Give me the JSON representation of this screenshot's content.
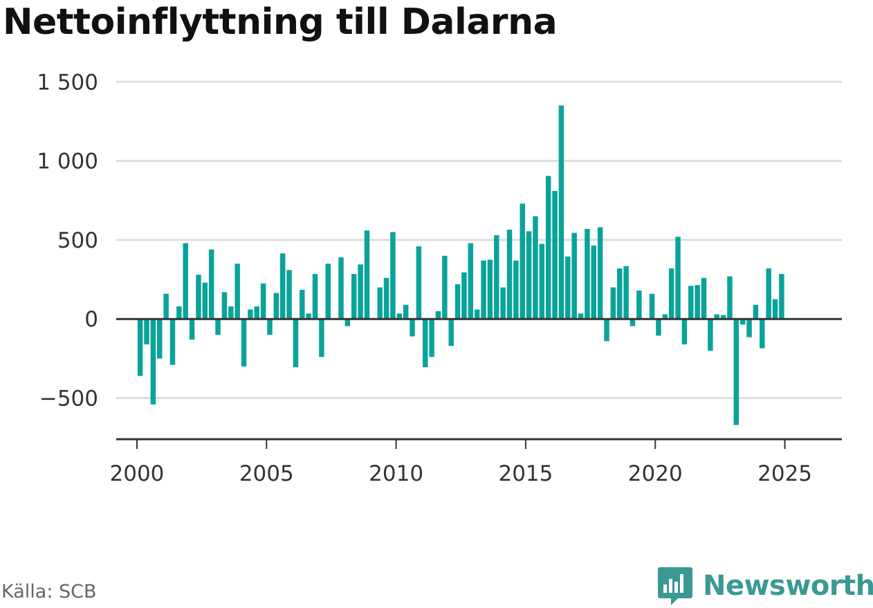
{
  "title": "Nettoinflyttning till Dalarna",
  "source": "Källa: SCB",
  "brand": {
    "name": "Newsworthy",
    "icon": "newsworthy-logo-icon",
    "color": "#3a9a93"
  },
  "colors": {
    "bar": "#0aa39a",
    "grid": "#dddddd",
    "zero_line": "#333333",
    "axis": "#333333"
  },
  "chart_data": {
    "type": "bar",
    "title": "Nettoinflyttning till Dalarna",
    "xlabel": "",
    "ylabel": "",
    "ylim": [
      -760,
      1580
    ],
    "xlim": [
      1999.2,
      2027.2
    ],
    "yticks": [
      -500,
      0,
      500,
      1000,
      1500
    ],
    "ytick_labels": [
      "−500",
      "0",
      "500",
      "1 000",
      "1 500"
    ],
    "xticks": [
      2000,
      2005,
      2010,
      2015,
      2020,
      2025
    ],
    "xtick_labels": [
      "2000",
      "2005",
      "2010",
      "2015",
      "2020",
      "2025"
    ],
    "grid": true,
    "frequency": "quarterly",
    "series": [
      {
        "start": "2000-Q1",
        "values": [
          -360,
          -160,
          -540,
          -250,
          160,
          -290,
          80,
          480,
          -130,
          280,
          230,
          440,
          -100,
          170,
          80,
          350,
          -300,
          60,
          80,
          225,
          -100,
          165,
          415,
          310,
          -305,
          185,
          35,
          285,
          -240,
          350,
          0,
          390,
          -45,
          285,
          345,
          560,
          0,
          200,
          260,
          550,
          35,
          90,
          -110,
          460,
          -305,
          -240,
          50,
          400,
          -170,
          220,
          295,
          480,
          60,
          370,
          375,
          530,
          200,
          565,
          370,
          730,
          555,
          650,
          475,
          905,
          810,
          1350,
          395,
          545,
          35,
          570,
          465,
          580,
          -140,
          200,
          320,
          335,
          -45,
          180,
          0,
          160,
          -105,
          30,
          320,
          520,
          -160,
          210,
          215,
          260,
          -200,
          30,
          25,
          270,
          -670,
          -35,
          -115,
          90,
          -185,
          320,
          125,
          285
        ]
      }
    ]
  }
}
